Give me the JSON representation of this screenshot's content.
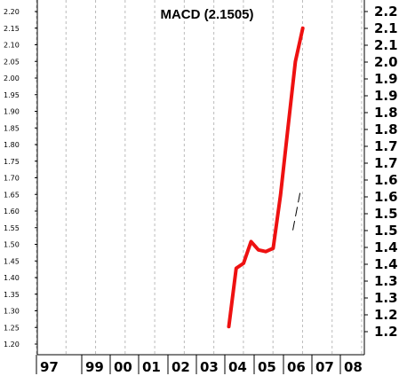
{
  "chart_data": {
    "type": "line",
    "title": "MACD (2.1505)",
    "xlabel": "",
    "ylabel": "",
    "x_ticks": [
      "97",
      "99",
      "00",
      "01",
      "02",
      "03",
      "04",
      "05",
      "06",
      "07",
      "08"
    ],
    "y_ticks_left": [
      "2.20",
      "2.15",
      "2.10",
      "2.05",
      "2.00",
      "1.95",
      "1.90",
      "1.85",
      "1.80",
      "1.75",
      "1.70",
      "1.65",
      "1.60",
      "1.55",
      "1.50",
      "1.45",
      "1.40",
      "1.35",
      "1.30",
      "1.25",
      "1.20"
    ],
    "y_ticks_right": [
      "2.2",
      "2.1",
      "2.1",
      "2.0",
      "1.9",
      "1.9",
      "1.8",
      "1.8",
      "1.7",
      "1.7",
      "1.6",
      "1.6",
      "1.5",
      "1.5",
      "1.4",
      "1.4",
      "1.3",
      "1.3",
      "1.2",
      "1.2"
    ],
    "ylim": [
      1.18,
      2.23
    ],
    "grid": "vertical-dashed",
    "series": [
      {
        "color": "#ee1111",
        "x": [
          "2003-06",
          "2003-09",
          "2003-12",
          "2004-03",
          "2004-06",
          "2004-09",
          "2004-12",
          "2005-03",
          "2005-06",
          "2005-09",
          "2005-12"
        ],
        "values": [
          1.255,
          1.43,
          1.445,
          1.51,
          1.485,
          1.48,
          1.49,
          1.65,
          1.85,
          2.05,
          2.15
        ]
      },
      {
        "color": "#000000",
        "x": [
          "2005-08",
          "2005-11"
        ],
        "values": [
          1.545,
          1.66
        ]
      }
    ]
  }
}
